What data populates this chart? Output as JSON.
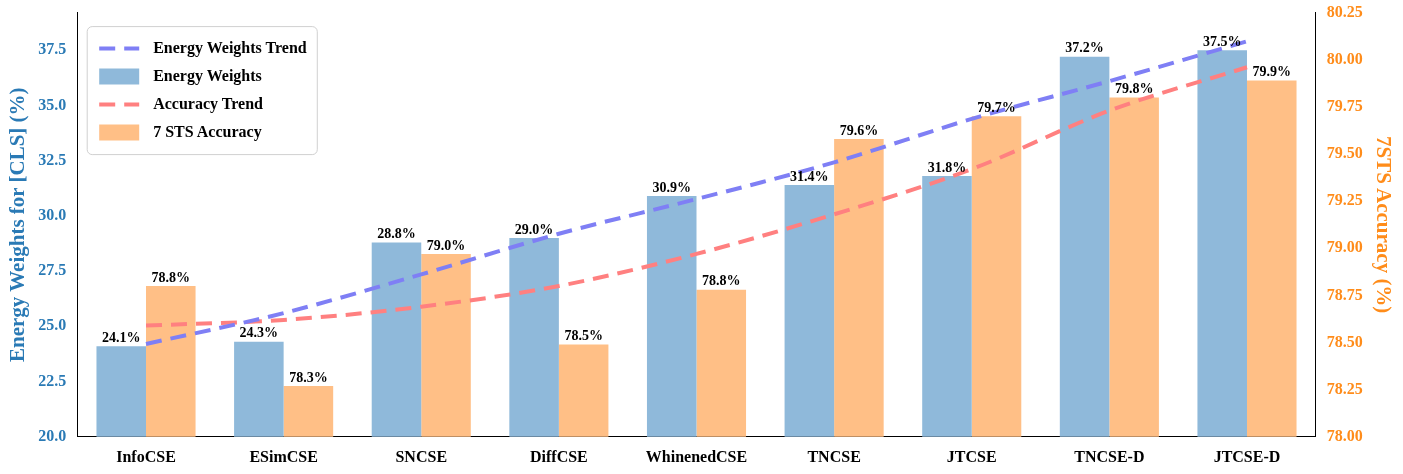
{
  "chart_data": {
    "type": "bar",
    "categories": [
      "InfoCSE",
      "ESimCSE",
      "SNCSE",
      "DiffCSE",
      "WhinenedCSE",
      "TNCSE",
      "JTCSE",
      "TNCSE-D",
      "JTCSE-D"
    ],
    "ylabel": "Energy Weights for [CLS] (%)",
    "y2label": "7STS Accuracy (%)",
    "ylim": [
      20,
      39.2
    ],
    "yticks": [
      {
        "value": 20,
        "label": "20.0"
      },
      {
        "value": 22.5,
        "label": "22.5"
      },
      {
        "value": 25,
        "label": "25.0"
      },
      {
        "value": 27.5,
        "label": "27.5"
      },
      {
        "value": 30,
        "label": "30.0"
      },
      {
        "value": 32.5,
        "label": "32.5"
      },
      {
        "value": 35,
        "label": "35.0"
      },
      {
        "value": 37.5,
        "label": "37.5"
      }
    ],
    "y2lim": [
      78,
      80.25
    ],
    "y2ticks": [
      {
        "value": 78,
        "label": "78.00"
      },
      {
        "value": 78.25,
        "label": "78.25"
      },
      {
        "value": 78.5,
        "label": "78.50"
      },
      {
        "value": 78.75,
        "label": "78.75"
      },
      {
        "value": 79,
        "label": "79.00"
      },
      {
        "value": 79.25,
        "label": "79.25"
      },
      {
        "value": 79.5,
        "label": "79.50"
      },
      {
        "value": 79.75,
        "label": "79.75"
      },
      {
        "value": 80,
        "label": "80.00"
      },
      {
        "value": 80.25,
        "label": "80.25"
      }
    ],
    "legend": "top left",
    "series": [
      {
        "name": "Energy Weights Trend",
        "type": "line",
        "line_style": "dashed",
        "color": "#7f7ff5",
        "values": [
          24.2,
          25.6,
          27.35,
          29.19,
          30.76,
          32.42,
          34.39,
          36.1,
          37.9
        ]
      },
      {
        "name": "Energy Weights",
        "color": "#8fb9da",
        "values": [
          24.1,
          24.3,
          28.8,
          29.0,
          30.9,
          31.4,
          31.8,
          37.2,
          37.5
        ],
        "value_labels": [
          "24.1%",
          "24.3%",
          "28.8%",
          "29.0%",
          "30.9%",
          "31.4%",
          "31.8%",
          "37.2%",
          "37.5%"
        ]
      },
      {
        "name": "Accuracy Trend",
        "type": "line",
        "line_style": "dashed",
        "axis": "y2",
        "color": "#ff8080",
        "values": [
          78.59,
          78.62,
          78.69,
          78.8,
          78.97,
          79.18,
          79.42,
          79.73,
          79.96
        ]
      },
      {
        "name": "7 STS Accuracy",
        "axis": "y2",
        "color": "#ffbf86",
        "values": [
          78.8,
          78.27,
          78.97,
          78.49,
          78.78,
          79.58,
          79.7,
          79.8,
          79.89
        ],
        "value_labels": [
          "78.8%",
          "78.3%",
          "79.0%",
          "78.5%",
          "78.8%",
          "79.6%",
          "79.7%",
          "79.8%",
          "79.9%"
        ]
      }
    ]
  }
}
